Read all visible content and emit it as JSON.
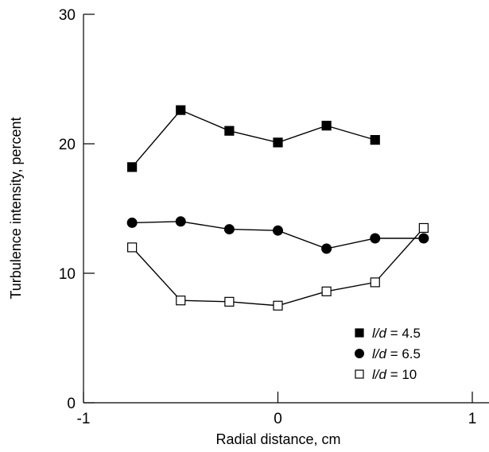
{
  "chart_data": {
    "type": "line",
    "xlabel": "Radial distance, cm",
    "ylabel": "Turbulence intensity, percent",
    "xlim": [
      -1,
      1
    ],
    "ylim": [
      0,
      30
    ],
    "x_ticks": [
      "-1",
      "0",
      "1"
    ],
    "y_ticks": [
      "0",
      "10",
      "20",
      "30"
    ],
    "x_tick_values": [
      -1,
      0,
      1
    ],
    "y_tick_values": [
      0,
      10,
      20,
      30
    ],
    "legend_position": "bottom-right",
    "grid": false,
    "series": [
      {
        "name": "l/d = 4.5",
        "legend_italic": "l/d",
        "legend_value": "= 4.5",
        "marker": "filled-square",
        "x": [
          -0.75,
          -0.5,
          -0.25,
          0.0,
          0.25,
          0.5
        ],
        "y": [
          18.2,
          22.6,
          21.0,
          20.1,
          21.4,
          20.3
        ]
      },
      {
        "name": "l/d = 6.5",
        "legend_italic": "l/d",
        "legend_value": "= 6.5",
        "marker": "filled-circle",
        "x": [
          -0.75,
          -0.5,
          -0.25,
          0.0,
          0.25,
          0.5,
          0.75
        ],
        "y": [
          13.9,
          14.0,
          13.4,
          13.3,
          11.9,
          12.7,
          12.7
        ]
      },
      {
        "name": "l/d = 10",
        "legend_italic": "l/d",
        "legend_value": "= 10",
        "marker": "open-square",
        "x": [
          -0.75,
          -0.5,
          -0.25,
          0.0,
          0.25,
          0.5,
          0.75
        ],
        "y": [
          12.0,
          7.9,
          7.8,
          7.5,
          8.6,
          9.3,
          13.5
        ]
      }
    ]
  }
}
